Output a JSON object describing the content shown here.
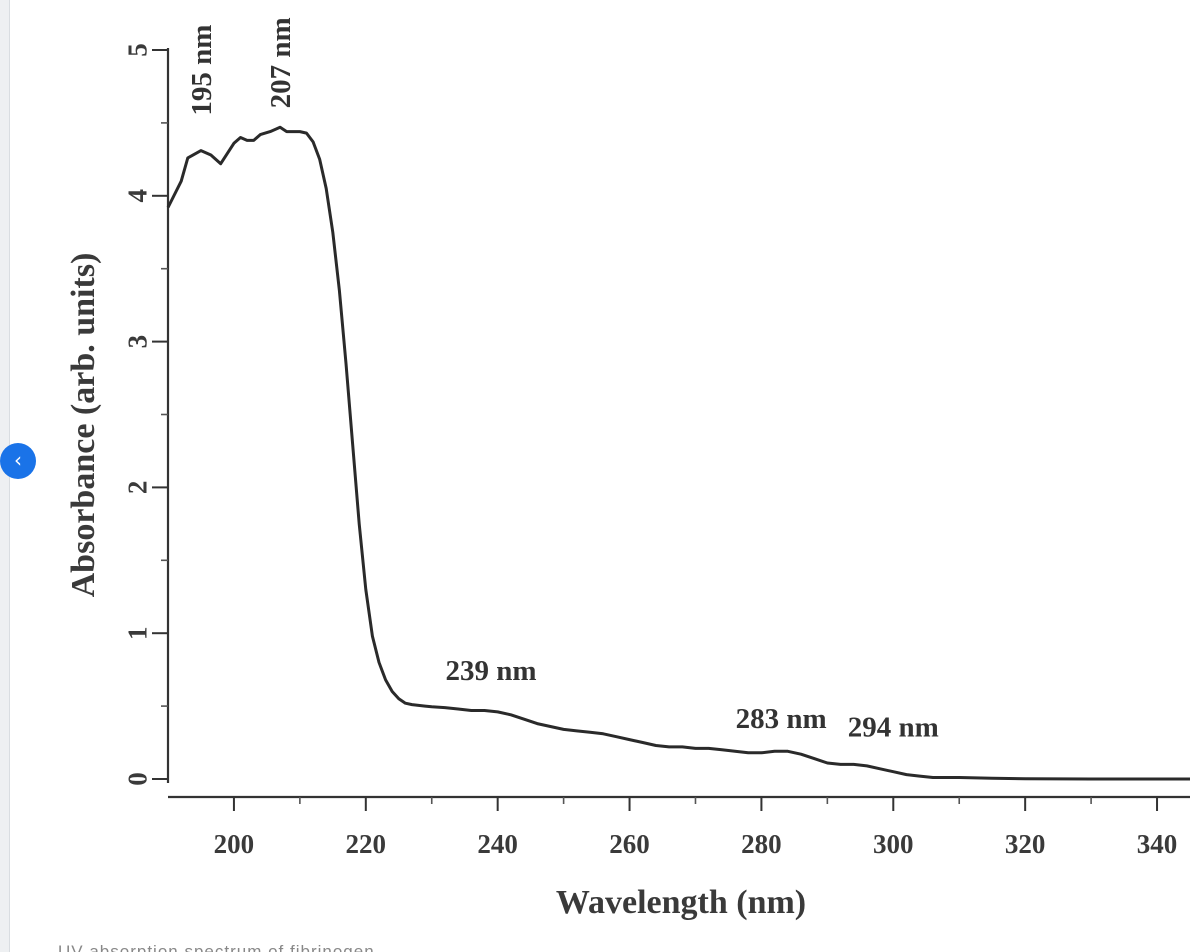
{
  "nav": {
    "back_icon": "chevron-left-icon",
    "back_glyph": "‹",
    "accent": "#1a73e8"
  },
  "caption": {
    "text": "UV absorption spectrum of fibrinogen"
  },
  "chart_data": {
    "type": "line",
    "title": "",
    "xlabel": "Wavelength (nm)",
    "ylabel": "Absorbance (arb. units)",
    "xlim": [
      190,
      345
    ],
    "ylim": [
      0,
      5
    ],
    "x_ticks": [
      200,
      220,
      240,
      260,
      280,
      300,
      320,
      340
    ],
    "x_minor_ticks": [
      210,
      230,
      250,
      270,
      290,
      310,
      330
    ],
    "y_ticks": [
      0,
      1,
      2,
      3,
      4,
      5
    ],
    "y_minor_ticks": [
      0.5,
      1.5,
      2.5,
      3.5,
      4.5
    ],
    "grid": false,
    "legend": null,
    "series": [
      {
        "name": "Absorbance",
        "x": [
          190,
          192,
          193,
          195,
          196.5,
          198,
          200,
          201,
          202,
          203,
          204,
          205.5,
          207,
          208,
          210,
          211,
          212,
          213,
          214,
          215,
          216,
          217,
          218,
          219,
          220,
          221,
          222,
          223,
          224,
          225,
          226,
          227,
          228,
          229,
          230,
          232,
          234,
          236,
          238,
          240,
          242,
          244,
          246,
          248,
          250,
          252,
          254,
          256,
          258,
          260,
          262,
          264,
          266,
          268,
          270,
          272,
          274,
          276,
          278,
          280,
          282,
          283,
          284,
          286,
          288,
          290,
          292,
          294,
          296,
          298,
          300,
          302,
          304,
          306,
          310,
          315,
          320,
          330,
          345
        ],
        "values": [
          3.92,
          4.1,
          4.26,
          4.31,
          4.28,
          4.22,
          4.36,
          4.4,
          4.38,
          4.38,
          4.42,
          4.44,
          4.47,
          4.44,
          4.44,
          4.43,
          4.37,
          4.25,
          4.05,
          3.75,
          3.35,
          2.85,
          2.3,
          1.75,
          1.3,
          0.98,
          0.8,
          0.68,
          0.6,
          0.55,
          0.52,
          0.51,
          0.505,
          0.5,
          0.495,
          0.49,
          0.48,
          0.47,
          0.47,
          0.46,
          0.44,
          0.41,
          0.38,
          0.36,
          0.34,
          0.33,
          0.32,
          0.31,
          0.29,
          0.27,
          0.25,
          0.23,
          0.22,
          0.22,
          0.21,
          0.21,
          0.2,
          0.19,
          0.18,
          0.18,
          0.19,
          0.19,
          0.19,
          0.17,
          0.14,
          0.11,
          0.1,
          0.1,
          0.09,
          0.07,
          0.05,
          0.03,
          0.02,
          0.01,
          0.01,
          0.005,
          0.002,
          0,
          0
        ]
      }
    ],
    "annotations": [
      {
        "text": "195 nm",
        "x": 195,
        "y": 4.55,
        "rotation": -90
      },
      {
        "text": "207 nm",
        "x": 207,
        "y": 4.6,
        "rotation": -90
      },
      {
        "text": "239 nm",
        "x": 239,
        "y": 0.68,
        "rotation": 0
      },
      {
        "text": "283 nm",
        "x": 283,
        "y": 0.35,
        "rotation": 0
      },
      {
        "text": "294 nm",
        "x": 300,
        "y": 0.29,
        "rotation": 0
      }
    ]
  }
}
